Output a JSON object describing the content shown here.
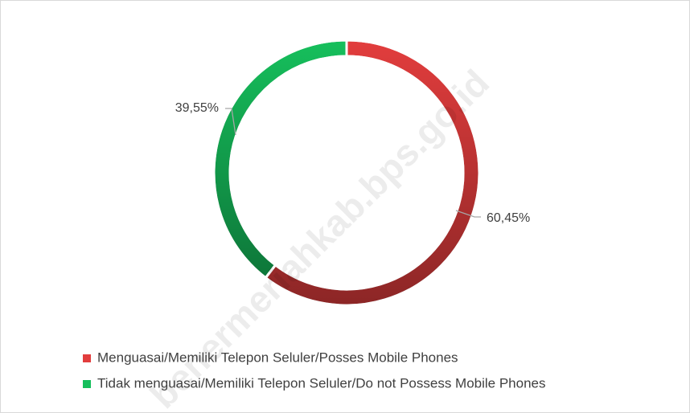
{
  "chart_data": {
    "type": "donut",
    "categories": [
      "Menguasai/Memiliki Telepon Seluler/Posses Mobile Phones",
      "Tidak menguasai/Memiliki Telepon Seluler/Do not Possess Mobile Phones"
    ],
    "values": [
      60.45,
      39.55
    ],
    "value_labels": [
      "60,45%",
      "39,55%"
    ],
    "colors": [
      "#e23d3d",
      "#16bf5c"
    ],
    "watermark": "benermeriahkab.bps.go.id"
  }
}
